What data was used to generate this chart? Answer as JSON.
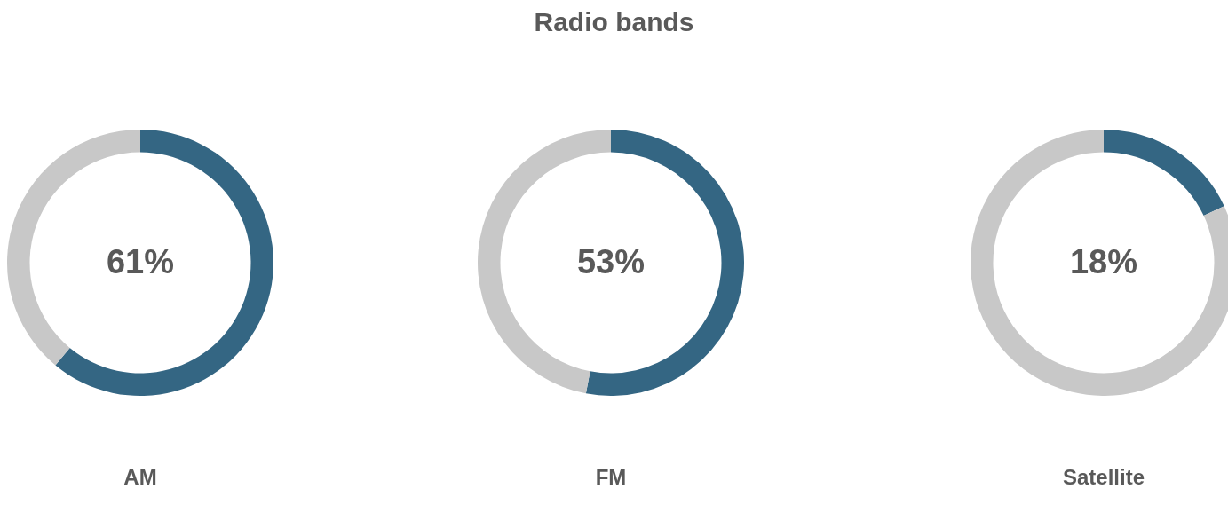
{
  "chart_data": [
    {
      "type": "donut",
      "categories": [
        null,
        null
      ],
      "values": [
        61,
        39
      ],
      "colors": [
        "#346683",
        "#c8c8c8"
      ],
      "value_labels": [
        "61%",
        null
      ],
      "xlabel": "AM",
      "legend": false
    },
    {
      "type": "donut",
      "title": "Radio bands",
      "categories": [
        null,
        null
      ],
      "values": [
        53,
        47
      ],
      "colors": [
        "#346683",
        "#c8c8c8"
      ],
      "value_labels": [
        "53%",
        null
      ],
      "xlabel": "FM",
      "legend": false
    },
    {
      "type": "donut",
      "categories": [
        null,
        null
      ],
      "values": [
        18,
        82
      ],
      "colors": [
        "#346683",
        "#c8c8c8"
      ],
      "value_labels": [
        "18%",
        null
      ],
      "xlabel": "Satellite",
      "legend": false
    }
  ]
}
